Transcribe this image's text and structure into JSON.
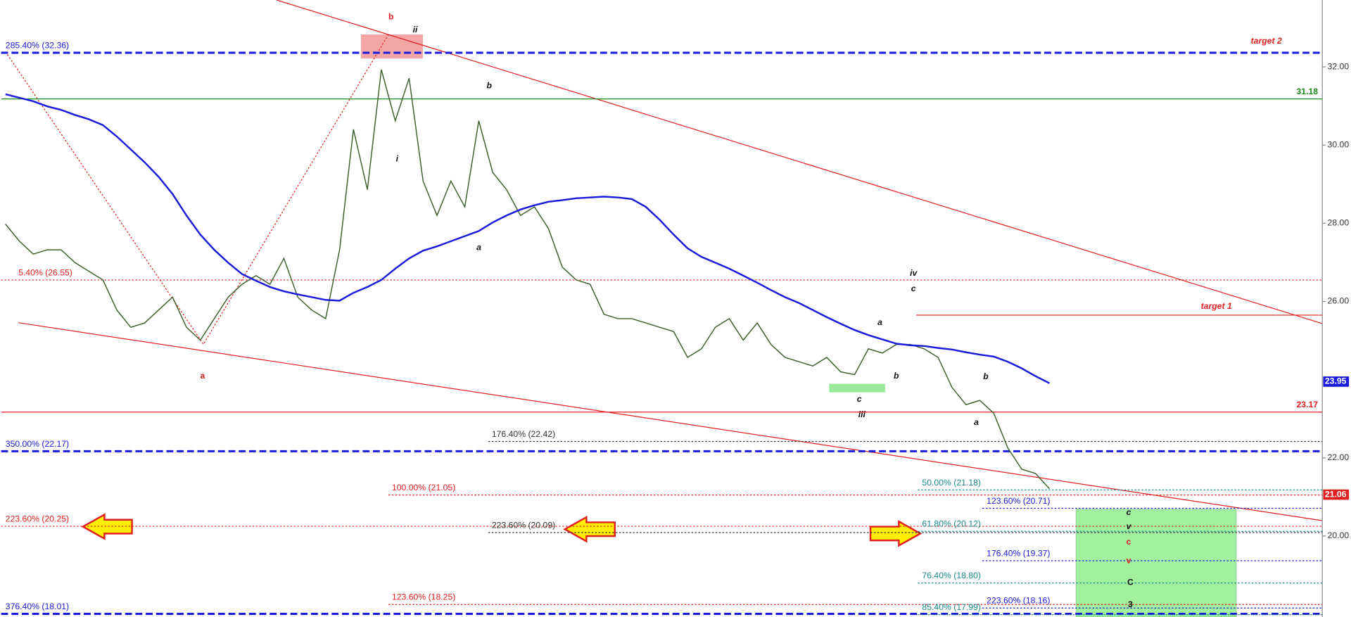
{
  "chart_data": {
    "type": "line",
    "categories": [
      null,
      null,
      null,
      null,
      null,
      null,
      null,
      null,
      null,
      null,
      null,
      null,
      null,
      null,
      null,
      null,
      null,
      null,
      null,
      null,
      null,
      null,
      null,
      null,
      null,
      null,
      null,
      null,
      null,
      null,
      null,
      null,
      null,
      null,
      null,
      null,
      null,
      null,
      null,
      null,
      null,
      null,
      null,
      null,
      null,
      null,
      null,
      null,
      null,
      null,
      null,
      null,
      null,
      null,
      null,
      null,
      null,
      null,
      null,
      null,
      null,
      null,
      null,
      null,
      null,
      null,
      null,
      null,
      null,
      null,
      null,
      null,
      null,
      null,
      null,
      null
    ],
    "series": [
      {
        "name": null,
        "color": "#3f5f2f",
        "values": [
          27.98,
          27.54,
          27.21,
          27.32,
          27.32,
          26.99,
          26.77,
          26.55,
          25.78,
          25.34,
          25.45,
          25.78,
          26.11,
          25.34,
          25.01,
          25.56,
          26.11,
          26.44,
          26.66,
          26.44,
          27.1,
          26.11,
          25.78,
          25.56,
          27.32,
          30.4,
          28.86,
          31.93,
          30.62,
          31.71,
          29.08,
          28.2,
          29.08,
          28.42,
          30.62,
          29.3,
          28.86,
          28.2,
          28.42,
          27.87,
          26.88,
          26.55,
          26.44,
          25.67,
          25.56,
          25.56,
          25.45,
          25.34,
          25.23,
          24.57,
          24.79,
          25.34,
          25.56,
          25.01,
          25.45,
          24.9,
          24.57,
          24.46,
          24.35,
          24.57,
          24.2,
          24.13,
          24.79,
          24.68,
          24.9,
          24.9,
          24.79,
          24.57,
          23.8,
          23.36,
          23.47,
          23.14,
          22.26,
          21.71,
          21.6,
          21.21
        ]
      },
      {
        "name": null,
        "color": "#1a1adb",
        "values": [
          31.3,
          31.21,
          31.12,
          30.99,
          30.9,
          30.77,
          30.66,
          30.51,
          30.22,
          29.89,
          29.56,
          29.19,
          28.75,
          28.2,
          27.71,
          27.32,
          26.99,
          26.7,
          26.53,
          26.37,
          26.26,
          26.18,
          26.11,
          26.04,
          26.02,
          26.22,
          26.37,
          26.55,
          26.84,
          27.1,
          27.3,
          27.41,
          27.54,
          27.67,
          27.8,
          28.02,
          28.2,
          28.35,
          28.46,
          28.55,
          28.59,
          28.64,
          28.66,
          28.68,
          28.66,
          28.62,
          28.42,
          28.09,
          27.71,
          27.36,
          27.14,
          26.99,
          26.84,
          26.66,
          26.48,
          26.29,
          26.11,
          25.96,
          25.78,
          25.6,
          25.43,
          25.27,
          25.14,
          25.03,
          24.92,
          24.88,
          24.86,
          24.81,
          24.77,
          24.7,
          24.64,
          24.59,
          24.46,
          24.29,
          24.09,
          23.91
        ]
      }
    ],
    "ylim": [
      17.93,
      33.71
    ],
    "yticks": [
      {
        "value": 20,
        "label": "20.00"
      },
      {
        "value": 22,
        "label": "22.00"
      },
      {
        "value": 26,
        "label": "26.00"
      },
      {
        "value": 28,
        "label": "28.00"
      },
      {
        "value": 30,
        "label": "30.00"
      },
      {
        "value": 32,
        "label": "32.00"
      }
    ],
    "levels": [
      {
        "label": "285.40% (32.36)",
        "value": 32.36,
        "color": "#1a1adb",
        "style": "dashed"
      },
      {
        "label": "31.18",
        "value": 31.18,
        "color": "#1a8a1a",
        "style": "solid"
      },
      {
        "label": "5.40% (26.55)",
        "value": 26.55,
        "color": "#e02020",
        "style": "dotted"
      },
      {
        "label": "23.17",
        "value": 23.17,
        "color": "#e02020",
        "style": "solid"
      },
      {
        "label": "176.40% (22.42)",
        "value": 22.42,
        "color": "#333333",
        "style": "dotted"
      },
      {
        "label": "350.00% (22.17)",
        "value": 22.17,
        "color": "#1a1adb",
        "style": "dashed"
      },
      {
        "label": "50.00% (21.18)",
        "value": 21.18,
        "color": "#1a8a8a",
        "style": "dotted"
      },
      {
        "label": "100.00% (21.05)",
        "value": 21.05,
        "color": "#e02020",
        "style": "dotted"
      },
      {
        "label": "123.60% (20.71)",
        "value": 20.71,
        "color": "#1a1adb",
        "style": "dotted"
      },
      {
        "label": "223.60% (20.25)",
        "value": 20.25,
        "color": "#e02020",
        "style": "dotted"
      },
      {
        "label": "61.80% (20.12)",
        "value": 20.12,
        "color": "#1a8a8a",
        "style": "dotted"
      },
      {
        "label": "223.60% (20.09)",
        "value": 20.09,
        "color": "#333333",
        "style": "dotted"
      },
      {
        "label": "176.40% (19.37)",
        "value": 19.37,
        "color": "#1a1adb",
        "style": "dotted"
      },
      {
        "label": "76.40% (18.80)",
        "value": 18.8,
        "color": "#1a8a8a",
        "style": "dotted"
      },
      {
        "label": "123.60% (18.25)",
        "value": 18.25,
        "color": "#e02020",
        "style": "dotted"
      },
      {
        "label": "223.60% (18.16)",
        "value": 18.16,
        "color": "#1a1adb",
        "style": "dotted"
      },
      {
        "label": "376.40% (18.01)",
        "value": 18.01,
        "color": "#1a1adb",
        "style": "dashed"
      },
      {
        "label": "85.40% (17.99)",
        "value": 17.99,
        "color": "#1a8a8a",
        "style": "dotted"
      },
      {
        "label": "target 1",
        "value": 25.65,
        "color": "#e02020",
        "style": "solid"
      }
    ],
    "price_markers": [
      {
        "value": 23.95,
        "color": "#1a1adb"
      },
      {
        "value": 21.06,
        "color": "#e02020"
      }
    ],
    "annotations": [
      "b",
      "ii",
      "target 2",
      "b",
      "i",
      "a",
      "a",
      "iv",
      "c",
      "a",
      "b",
      "c",
      "iii",
      "b",
      "a",
      "c",
      "v",
      "c",
      "v",
      "C",
      "3"
    ]
  }
}
